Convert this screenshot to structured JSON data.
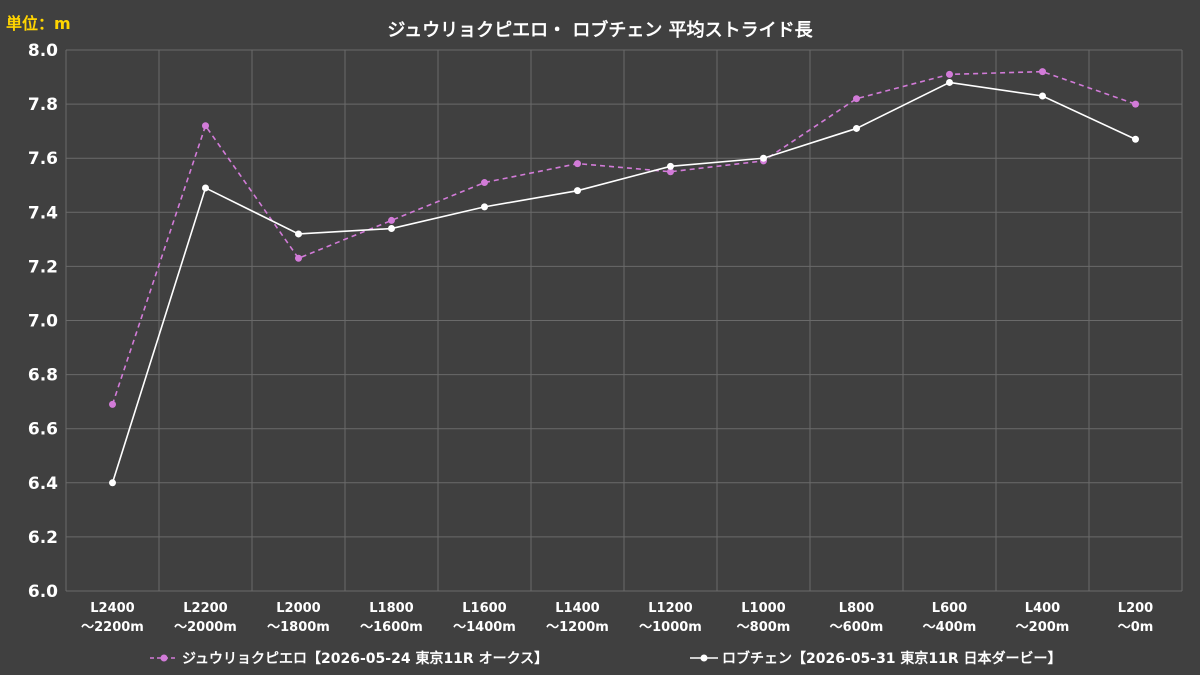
{
  "unit_label": "単位：m",
  "chart_data": {
    "type": "line",
    "title": "ジュウリョクピエロ・ ロブチェン 平均ストライド長",
    "xlabel": "",
    "ylabel": "",
    "ylim": [
      6.0,
      8.0
    ],
    "ytick_step": 0.2,
    "grid": true,
    "legend_position": "bottom",
    "categories": [
      [
        "L2400",
        "～2200m"
      ],
      [
        "L2200",
        "～2000m"
      ],
      [
        "L2000",
        "～1800m"
      ],
      [
        "L1800",
        "～1600m"
      ],
      [
        "L1600",
        "～1400m"
      ],
      [
        "L1400",
        "～1200m"
      ],
      [
        "L1200",
        "～1000m"
      ],
      [
        "L1000",
        "～800m"
      ],
      [
        "L800",
        "～600m"
      ],
      [
        "L600",
        "～400m"
      ],
      [
        "L400",
        "～200m"
      ],
      [
        "L200",
        "～0m"
      ]
    ],
    "series": [
      {
        "name": "ジュウリョクピエロ【2026-05-24 東京11R オークス】",
        "color": "#d27bd8",
        "dashed": true,
        "values": [
          6.69,
          7.72,
          7.23,
          7.37,
          7.51,
          7.58,
          7.55,
          7.59,
          7.82,
          7.91,
          7.92,
          7.8
        ]
      },
      {
        "name": "ロブチェン【2026-05-31 東京11R 日本ダービー】",
        "color": "#ffffff",
        "dashed": false,
        "values": [
          6.4,
          7.49,
          7.32,
          7.34,
          7.42,
          7.48,
          7.57,
          7.6,
          7.71,
          7.88,
          7.83,
          7.67
        ]
      }
    ]
  }
}
